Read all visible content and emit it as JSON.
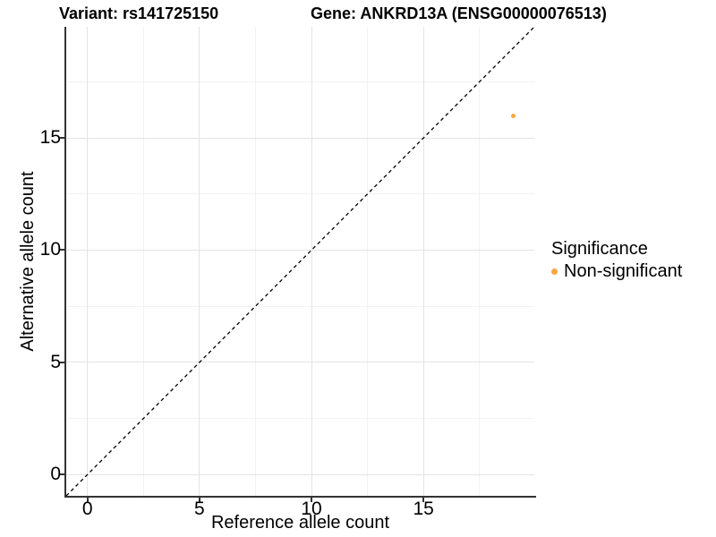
{
  "chart_data": {
    "type": "scatter",
    "title_left": "Variant: rs141725150",
    "title_right": "Gene: ANKRD13A (ENSG00000076513)",
    "xlabel": "Reference allele count",
    "ylabel": "Alternative allele count",
    "x_ticks": [
      0,
      5,
      10,
      15
    ],
    "y_ticks": [
      0,
      5,
      10,
      15
    ],
    "x_minor_ticks": [
      2.5,
      7.5,
      12.5,
      17.5
    ],
    "y_minor_ticks": [
      2.5,
      7.5,
      12.5,
      17.5
    ],
    "x_range": [
      -0.95,
      19.95
    ],
    "y_range": [
      -0.95,
      19.95
    ],
    "grid": true,
    "legend_position": "right",
    "points": [
      {
        "x": 19,
        "y": 16,
        "series": "Non-significant"
      }
    ],
    "identity_line": {
      "style": "dashed",
      "slope": 1,
      "intercept": 0
    },
    "legend": {
      "title": "Significance",
      "items": [
        {
          "label": "Non-significant",
          "color": "#F9A642"
        }
      ]
    },
    "colors": {
      "point": "#F9A642",
      "grid_major": "#E4E4E4",
      "grid_minor": "#F2F2F2",
      "axis": "#333333",
      "dashed_line": "#000000",
      "text": "#000000"
    }
  }
}
